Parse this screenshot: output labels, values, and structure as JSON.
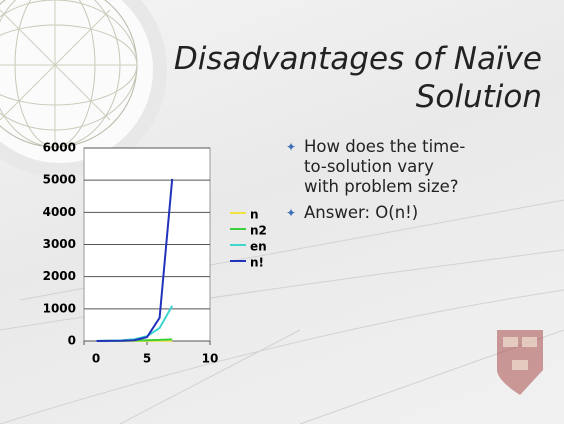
{
  "slide": {
    "title_lines": [
      "Disadvantages of Naïve",
      "Solution"
    ],
    "bullets": [
      "How does the time-to-solution vary with problem size?",
      "Answer: O(n!)"
    ]
  },
  "chart_data": {
    "type": "line",
    "x": [
      1,
      2,
      3,
      4,
      5,
      6,
      7
    ],
    "series": [
      {
        "name": "n",
        "color": "#f2e43a",
        "values": [
          1,
          2,
          3,
          4,
          5,
          6,
          7
        ]
      },
      {
        "name": "n2",
        "color": "#3ccf3c",
        "values": [
          1,
          4,
          9,
          16,
          25,
          36,
          49
        ]
      },
      {
        "name": "en",
        "color": "#3fd6d0",
        "values": [
          2.72,
          7.39,
          20.09,
          54.6,
          148.41,
          403.43,
          1096.63
        ]
      },
      {
        "name": "n!",
        "color": "#2233bb",
        "values": [
          1,
          2,
          6,
          24,
          120,
          720,
          5040
        ]
      }
    ],
    "xlim": [
      0,
      10
    ],
    "xticks": [
      0,
      5,
      10
    ],
    "ylim": [
      0,
      6000
    ],
    "yticks": [
      0,
      1000,
      2000,
      3000,
      4000,
      5000,
      6000
    ],
    "grid": true,
    "legend": "right"
  }
}
